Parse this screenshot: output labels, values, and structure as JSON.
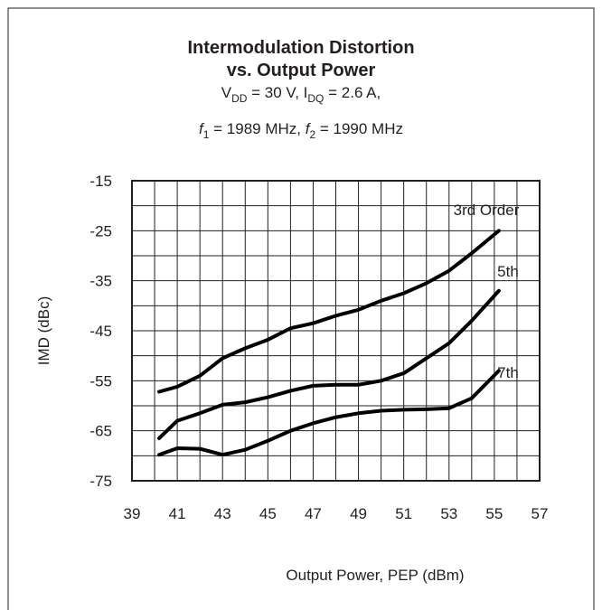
{
  "chart_data": {
    "type": "line",
    "title": [
      "Intermodulation Distortion",
      "vs. Output Power"
    ],
    "subtitle": [
      [
        {
          "text": "V"
        },
        {
          "text": "DD",
          "sub": true
        },
        {
          "text": " = 30 V, I"
        },
        {
          "text": "DQ",
          "sub": true
        },
        {
          "text": " = 2.6 A,"
        }
      ],
      [
        {
          "text": "f",
          "italic": true
        },
        {
          "text": "1",
          "sub": true
        },
        {
          "text": " = 1989 MHz, "
        },
        {
          "text": "f",
          "italic": true
        },
        {
          "text": "2",
          "sub": true
        },
        {
          "text": " = 1990 MHz"
        }
      ]
    ],
    "xlabel": "Output Power, PEP (dBm)",
    "ylabel": "IMD (dBc)",
    "x": [
      40.2,
      41,
      42,
      43,
      44,
      45,
      46,
      47,
      48,
      49,
      50,
      51,
      52,
      53,
      54,
      55.2
    ],
    "series": [
      {
        "name": "3rd Order",
        "color": "#000000",
        "values": [
          -57.2,
          -56.2,
          -54,
          -50.5,
          -48.5,
          -46.8,
          -44.5,
          -43.5,
          -42,
          -40.8,
          -39,
          -37.5,
          -35.5,
          -33,
          -29.5,
          -25
        ]
      },
      {
        "name": "5th",
        "color": "#000000",
        "values": [
          -66.5,
          -63,
          -61.5,
          -59.8,
          -59.3,
          -58.3,
          -57,
          -56,
          -55.8,
          -55.8,
          -55,
          -53.5,
          -50.5,
          -47.5,
          -43,
          -37
        ]
      },
      {
        "name": "7th",
        "color": "#000000",
        "values": [
          -69.8,
          -68.5,
          -68.6,
          -69.8,
          -68.8,
          -67,
          -65,
          -63.5,
          -62.3,
          -61.5,
          -61,
          -60.8,
          -60.7,
          -60.5,
          -58.5,
          -53
        ]
      }
    ],
    "xlim": [
      39,
      57
    ],
    "xticks": [
      39,
      41,
      43,
      45,
      47,
      49,
      51,
      53,
      55,
      57
    ],
    "x_grid": [
      39,
      40,
      41,
      42,
      43,
      44,
      45,
      46,
      47,
      48,
      49,
      50,
      51,
      52,
      53,
      54,
      55,
      56,
      57
    ],
    "ylim": [
      -75,
      -15
    ],
    "yticks": [
      -15,
      -25,
      -35,
      -45,
      -55,
      -65,
      -75
    ],
    "y_grid": [
      -15,
      -20,
      -25,
      -30,
      -35,
      -40,
      -45,
      -50,
      -55,
      -60,
      -65,
      -70,
      -75
    ],
    "grid": true
  }
}
